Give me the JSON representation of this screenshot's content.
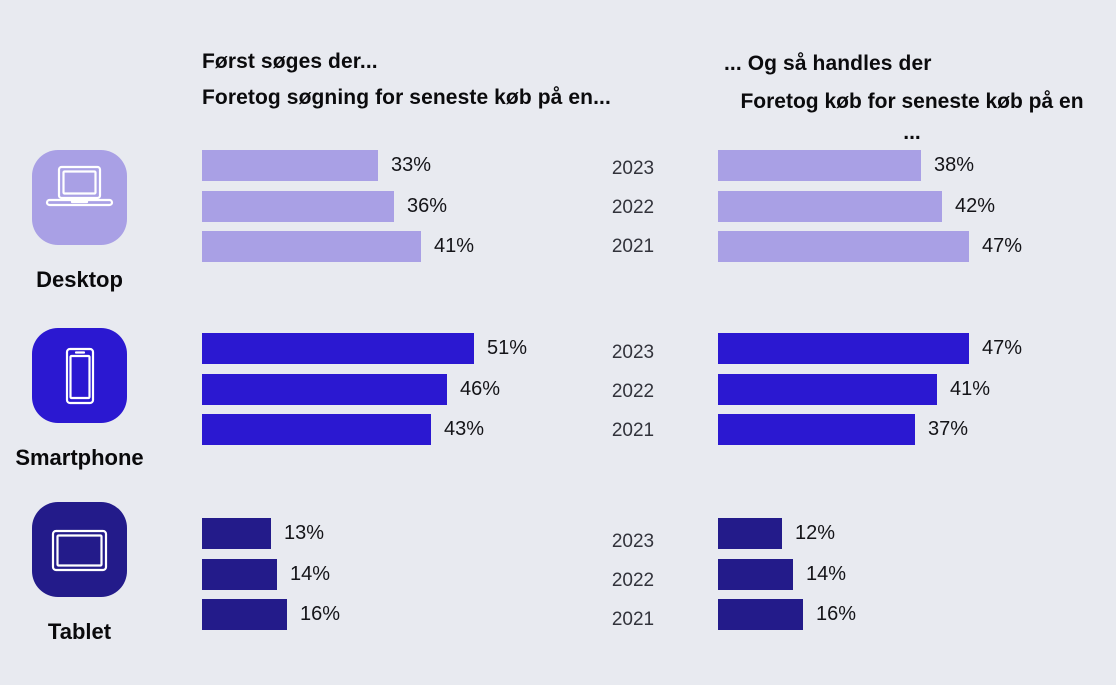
{
  "background": "#e8eaf0",
  "header": {
    "search_title": "Først søges der...",
    "search_subtitle": "Foretog søgning for seneste køb på en...",
    "purchase_title": "... Og så handles der",
    "purchase_subtitle": "Foretog køb for seneste køb på en",
    "purchase_subtitle_cont": "..."
  },
  "chart_data": {
    "type": "bar",
    "orientation": "horizontal",
    "value_unit": "%",
    "value_range": [
      0,
      100
    ],
    "years": [
      "2023",
      "2022",
      "2021"
    ],
    "series": [
      {
        "key": "search",
        "title": "Først søges der...",
        "subtitle": "Foretog søgning for seneste køb på en..."
      },
      {
        "key": "purchase",
        "title": "... Og så handles der",
        "subtitle": "Foretog køb for seneste køb på en ..."
      }
    ],
    "groups": [
      {
        "device": "Desktop",
        "icon": "laptop-icon",
        "color": "#a9a0e5",
        "search": [
          33,
          36,
          41
        ],
        "purchase": [
          38,
          42,
          47
        ]
      },
      {
        "device": "Smartphone",
        "icon": "smartphone-icon",
        "color": "#2b18d1",
        "search": [
          51,
          46,
          43
        ],
        "purchase": [
          47,
          41,
          37
        ]
      },
      {
        "device": "Tablet",
        "icon": "tablet-icon",
        "color": "#231b8a",
        "search": [
          13,
          14,
          16
        ],
        "purchase": [
          12,
          14,
          16
        ]
      }
    ]
  }
}
